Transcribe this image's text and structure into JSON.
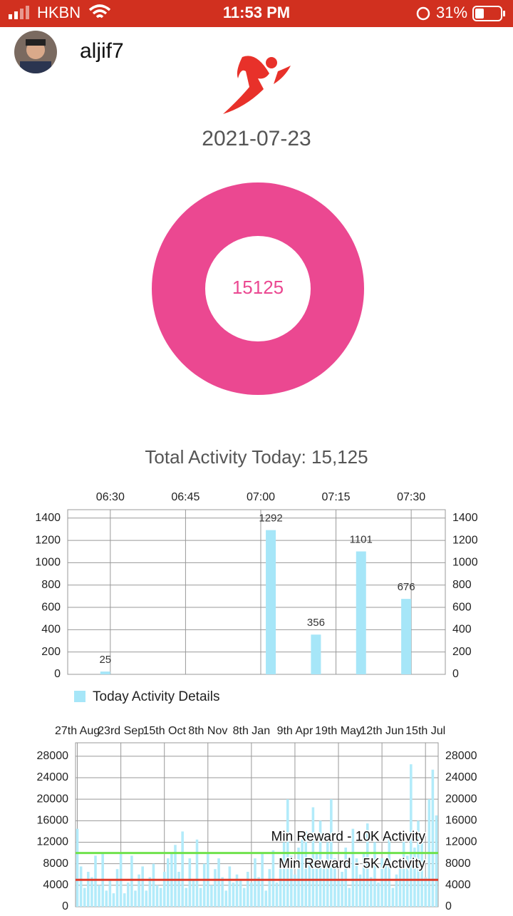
{
  "status_bar": {
    "carrier": "HKBN",
    "time": "11:53 PM",
    "battery": "31%"
  },
  "user": {
    "name": "aljif7"
  },
  "date": "2021-07-23",
  "chart_data": [
    {
      "type": "donut",
      "values": [
        15125
      ],
      "color": "#eb4891",
      "caption": "Total Activity Today: 15,125"
    },
    {
      "type": "timebar",
      "x": [
        389,
        422,
        431,
        440,
        449
      ],
      "series": [
        {
          "name": "Today Activity Details",
          "color": "#a6e6f8",
          "values": [
            25,
            1292,
            356,
            1101,
            676
          ]
        }
      ],
      "xlim": [
        381.5,
        456.8
      ],
      "xticks": [
        {
          "value": 390,
          "label": "06:30"
        },
        {
          "value": 405,
          "label": "06:45"
        },
        {
          "value": 420,
          "label": "07:00"
        },
        {
          "value": 435,
          "label": "07:15"
        },
        {
          "value": 450,
          "label": "07:30"
        }
      ],
      "ylim": [
        0,
        1475
      ],
      "yticks": [
        0,
        200,
        400,
        600,
        800,
        1000,
        1200,
        1400
      ],
      "grid": true
    },
    {
      "type": "daybar",
      "categories": [
        "27th Aug",
        null,
        null,
        null,
        null,
        null,
        null,
        null,
        null,
        null,
        null,
        null,
        "23rd Sep",
        null,
        null,
        null,
        null,
        null,
        null,
        null,
        null,
        null,
        null,
        null,
        "15th Oct",
        null,
        null,
        null,
        null,
        null,
        null,
        null,
        null,
        null,
        null,
        null,
        "8th Nov",
        null,
        null,
        null,
        null,
        null,
        null,
        null,
        null,
        null,
        null,
        null,
        "8th Jan",
        null,
        null,
        null,
        null,
        null,
        null,
        null,
        null,
        null,
        null,
        null,
        "9th Apr",
        null,
        null,
        null,
        null,
        null,
        null,
        null,
        null,
        null,
        null,
        null,
        "19th May",
        null,
        null,
        null,
        null,
        null,
        null,
        null,
        null,
        null,
        null,
        null,
        "12th Jun",
        null,
        null,
        null,
        null,
        null,
        null,
        null,
        null,
        null,
        null,
        null,
        "15th Jul",
        null,
        null,
        null
      ],
      "color": "#b2ebfa",
      "values": [
        14500,
        7500,
        3500,
        6500,
        5500,
        9500,
        4000,
        10000,
        3000,
        5000,
        2500,
        7000,
        10000,
        2500,
        4500,
        9500,
        3000,
        6000,
        7500,
        3000,
        5500,
        8000,
        4000,
        3500,
        6500,
        9000,
        10000,
        11500,
        6500,
        14000,
        3500,
        9000,
        5000,
        12500,
        3500,
        8000,
        10000,
        4000,
        7000,
        9000,
        5500,
        3000,
        7500,
        4500,
        6000,
        5000,
        3500,
        6500,
        4500,
        9000,
        5500,
        10000,
        3000,
        7000,
        10500,
        4500,
        8000,
        12000,
        20000,
        9500,
        6000,
        11000,
        12500,
        14000,
        8500,
        18500,
        10000,
        16000,
        7500,
        12000,
        20000,
        9000,
        5000,
        6500,
        11000,
        3500,
        14500,
        9000,
        6000,
        10000,
        15500,
        5500,
        12000,
        4500,
        9000,
        8000,
        13000,
        3500,
        6000,
        7500,
        12500,
        9500,
        26500,
        11000,
        16000,
        13000,
        5500,
        20000,
        25500,
        17000
      ],
      "ylim": [
        0,
        30500
      ],
      "yticks": [
        0,
        4000,
        8000,
        12000,
        16000,
        20000,
        24000,
        28000
      ],
      "grid": true,
      "hlines": [
        {
          "value": 10000,
          "label": "Min Reward - 10K Activity",
          "color": "#6fe24c"
        },
        {
          "value": 5000,
          "label": "Min Reward - 5K Activity",
          "color": "#e03a2a"
        }
      ]
    }
  ]
}
